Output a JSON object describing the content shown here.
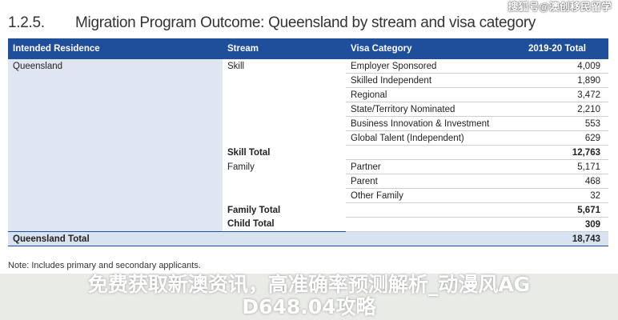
{
  "header": {
    "section_number": "1.2.5.",
    "title": "Migration Program Outcome: Queensland by stream and visa category",
    "watermark": "搜狐号@澳创移民留学"
  },
  "table": {
    "columns": [
      "Intended Residence",
      "Stream",
      "Visa Category",
      "2019-20 Total"
    ],
    "rows": [
      {
        "residence": "Queensland",
        "stream": "Skill",
        "category": "Employer Sponsored",
        "total": "4,009"
      },
      {
        "residence": "",
        "stream": "",
        "category": "Skilled Independent",
        "total": "1,890"
      },
      {
        "residence": "",
        "stream": "",
        "category": "Regional",
        "total": "3,472"
      },
      {
        "residence": "",
        "stream": "",
        "category": "State/Territory Nominated",
        "total": "2,210"
      },
      {
        "residence": "",
        "stream": "",
        "category": "Business Innovation & Investment",
        "total": "553"
      },
      {
        "residence": "",
        "stream": "",
        "category": "Global Talent (Independent)",
        "total": "629"
      },
      {
        "residence": "",
        "stream": "Skill Total",
        "category": "",
        "total": "12,763",
        "bold": true
      },
      {
        "residence": "",
        "stream": "Family",
        "category": "Partner",
        "total": "5,171"
      },
      {
        "residence": "",
        "stream": "",
        "category": "Parent",
        "total": "468"
      },
      {
        "residence": "",
        "stream": "",
        "category": "Other Family",
        "total": "32"
      },
      {
        "residence": "",
        "stream": "Family Total",
        "category": "",
        "total": "5,671",
        "bold": true
      },
      {
        "residence": "",
        "stream": "Child Total",
        "category": "",
        "total": "309",
        "bold": true
      }
    ],
    "grand_total": {
      "label": "Queensland Total",
      "total": "18,743"
    }
  },
  "note": "Note: Includes primary and secondary applicants.",
  "overlay": {
    "line1": "免费获取新澳资讯，高准确率预测解析_动漫风AG",
    "line2": "D648.04攻略"
  },
  "colors": {
    "header_bg": "#1f4e9a",
    "total_row_bg": "#d9e2f0"
  }
}
